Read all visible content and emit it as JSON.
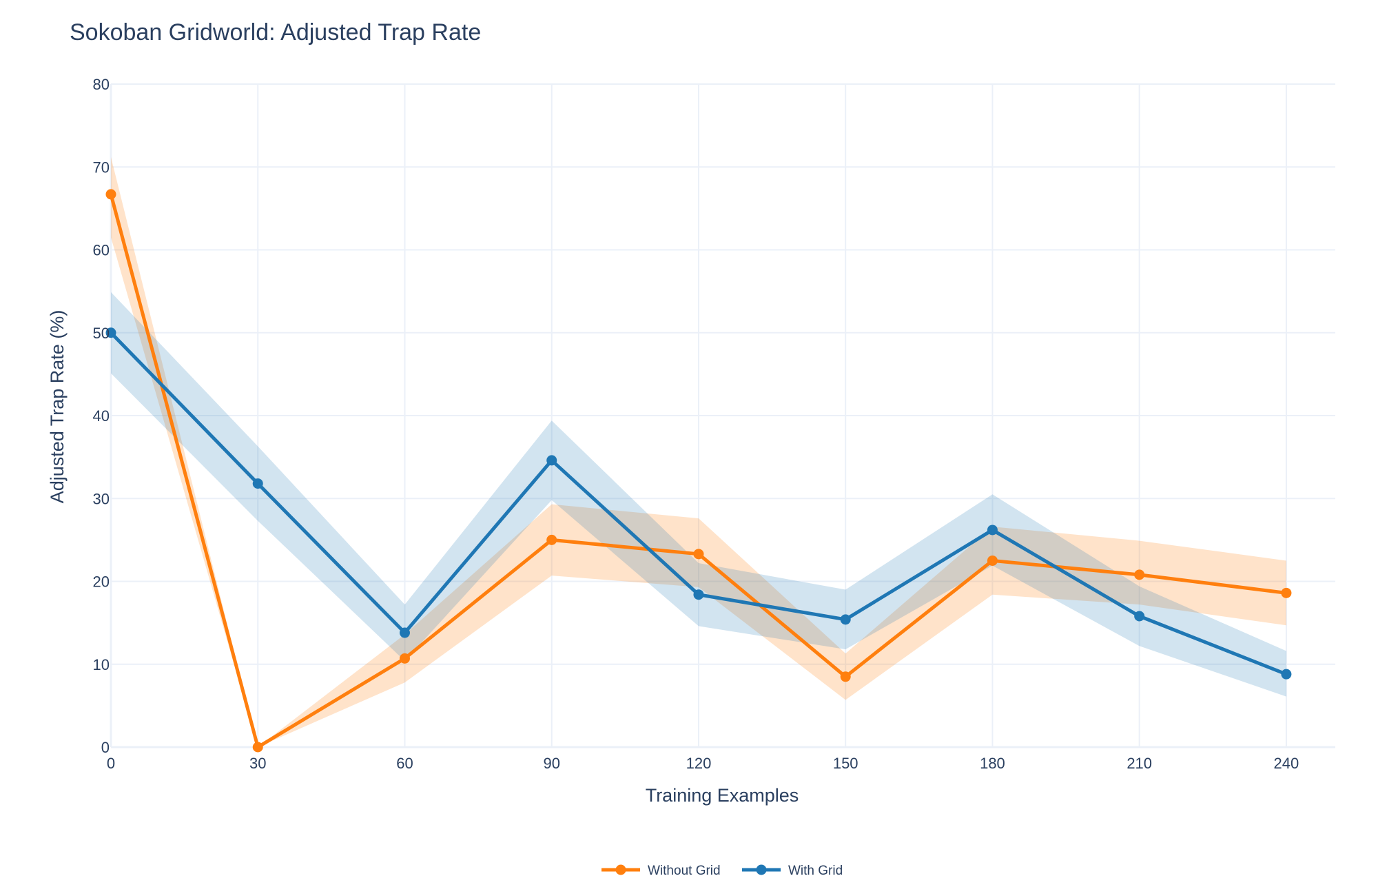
{
  "chart_data": {
    "type": "line",
    "title": "Sokoban Gridworld: Adjusted Trap Rate",
    "xlabel": "Training Examples",
    "ylabel": "Adjusted Trap Rate (%)",
    "x": [
      0,
      30,
      60,
      90,
      120,
      150,
      180,
      210,
      240
    ],
    "xlim": [
      0,
      250
    ],
    "ylim": [
      0,
      80
    ],
    "xticks": [
      0,
      30,
      60,
      90,
      120,
      150,
      180,
      210,
      240
    ],
    "yticks": [
      0,
      10,
      20,
      30,
      40,
      50,
      60,
      70,
      80
    ],
    "grid": true,
    "legend_position": "bottom-center",
    "series": [
      {
        "name": "Without Grid",
        "color": "#ff7f0e",
        "band_color": "rgba(255,127,14,0.22)",
        "values": [
          66.7,
          0,
          10.7,
          25.0,
          23.3,
          8.5,
          22.5,
          20.8,
          18.6
        ],
        "lower": [
          61.5,
          0,
          7.8,
          20.7,
          19.3,
          5.7,
          18.4,
          17.2,
          14.7
        ],
        "upper": [
          71.2,
          0,
          13.6,
          29.3,
          27.6,
          11.3,
          26.6,
          24.9,
          22.5
        ]
      },
      {
        "name": "With Grid",
        "color": "#1f77b4",
        "band_color": "rgba(31,119,180,0.20)",
        "values": [
          50.0,
          31.8,
          13.8,
          34.6,
          18.4,
          15.4,
          26.2,
          15.8,
          8.8
        ],
        "lower": [
          45.1,
          27.3,
          10.4,
          29.8,
          14.6,
          11.8,
          21.9,
          12.2,
          6.1
        ],
        "upper": [
          54.9,
          36.3,
          17.2,
          39.4,
          22.2,
          19.0,
          30.5,
          19.4,
          11.6
        ]
      }
    ]
  }
}
